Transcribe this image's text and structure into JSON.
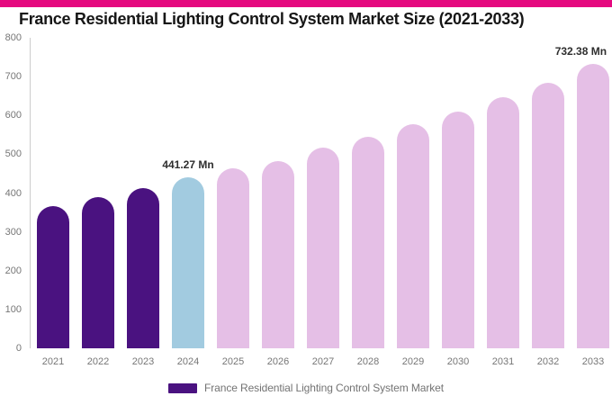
{
  "page": {
    "accent_color": "#e5097f",
    "background_color": "#ffffff"
  },
  "title": "France Residential Lighting Control System Market Size (2021-2033)",
  "legend": {
    "label": "France Residential Lighting Control System Market",
    "swatch_color": "#4a1280",
    "position": "bottom"
  },
  "chart_data": {
    "type": "bar",
    "title": "France Residential Lighting Control System Market Size (2021-2033)",
    "categories": [
      "2021",
      "2022",
      "2023",
      "2024",
      "2025",
      "2026",
      "2027",
      "2028",
      "2029",
      "2030",
      "2031",
      "2032",
      "2033"
    ],
    "values": [
      366,
      390,
      413,
      441.27,
      464,
      483,
      517,
      545,
      578,
      610,
      647,
      685,
      732.38
    ],
    "unit": "Mn",
    "colors": [
      "#4a1280",
      "#4a1280",
      "#4a1280",
      "#a2cbe0",
      "#e5bfe6",
      "#e5bfe6",
      "#e5bfe6",
      "#e5bfe6",
      "#e5bfe6",
      "#e5bfe6",
      "#e5bfe6",
      "#e5bfe6",
      "#e5bfe6"
    ],
    "color_roles": {
      "historical": "#4a1280",
      "base_year": "#a2cbe0",
      "forecast": "#e5bfe6"
    },
    "xlabel": "",
    "ylabel": "",
    "ylim": [
      0,
      800
    ],
    "yticks": [
      0,
      100,
      200,
      300,
      400,
      500,
      600,
      700,
      800
    ],
    "grid": false,
    "bar_corner": "rounded-top",
    "annotations": [
      {
        "category": "2024",
        "label": "441.27 Mn"
      },
      {
        "category": "2033",
        "label": "732.38 Mn"
      }
    ],
    "axis_text_color": "#767676",
    "axis_line_color": "#cccccc",
    "annotation_text_color": "#2e2e2e"
  }
}
